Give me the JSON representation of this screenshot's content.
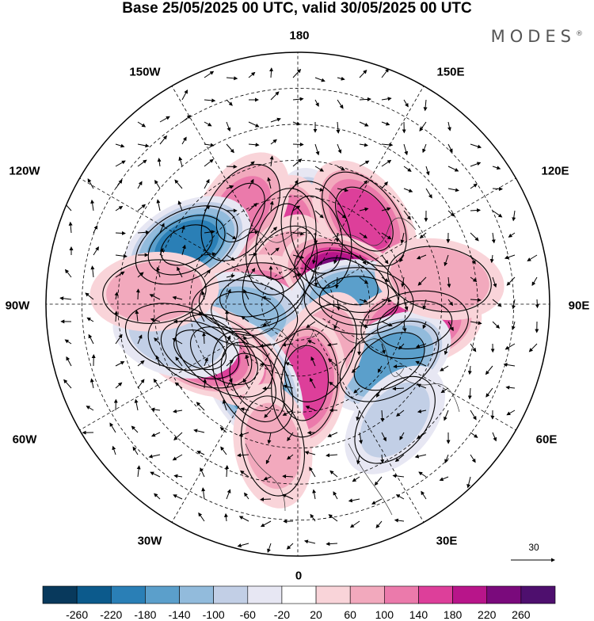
{
  "title": "Base 25/05/2025 00 UTC, valid 30/05/2025 00 UTC",
  "brand": "MODES",
  "brand_mark": "®",
  "longitude_labels": {
    "top": "180",
    "top_left": "150W",
    "top_right": "150E",
    "upper_left": "120W",
    "upper_right": "120E",
    "left": "90W",
    "right": "90E",
    "lower_left": "60W",
    "lower_right": "60E",
    "bottom_left": "30W",
    "bottom_right": "30E",
    "bottom": "0"
  },
  "reference_vector": {
    "label": "30"
  },
  "colorbar": {
    "ticks": [
      "-260",
      "-220",
      "-180",
      "-140",
      "-100",
      "-60",
      "-20",
      "20",
      "60",
      "100",
      "140",
      "180",
      "220",
      "260"
    ],
    "colors": [
      "#08395c",
      "#0c5a8c",
      "#2a7fb6",
      "#5b9fcb",
      "#92bbdc",
      "#c2cfe6",
      "#e7e7f3",
      "#ffffff",
      "#f9d4d9",
      "#f2a9bd",
      "#eb7aab",
      "#dd3f9a",
      "#b8158a",
      "#7a0a7c",
      "#4e0f6e"
    ]
  },
  "anomaly_centers": [
    {
      "lon": -165,
      "colat": 20,
      "value": -170
    },
    {
      "lon": 165,
      "colat": 18,
      "value": 160
    },
    {
      "lon": 148,
      "colat": 30,
      "value": 110
    },
    {
      "lon": -142,
      "colat": 30,
      "value": 140
    },
    {
      "lon": 118,
      "colat": 35,
      "value": -190
    },
    {
      "lon": 150,
      "colat": 10,
      "value": 70
    },
    {
      "lon": 100,
      "colat": 13,
      "value": 110
    },
    {
      "lon": 80,
      "colat": 15,
      "value": -120
    },
    {
      "lon": -115,
      "colat": 15,
      "value": 240
    },
    {
      "lon": -93,
      "colat": 17,
      "value": -170
    },
    {
      "lon": -80,
      "colat": 33,
      "value": 150
    },
    {
      "lon": -58,
      "colat": 30,
      "value": -160
    },
    {
      "lon": -25,
      "colat": 15,
      "value": 80
    },
    {
      "lon": -5,
      "colat": 22,
      "value": 150
    },
    {
      "lon": 30,
      "colat": 25,
      "value": -220
    },
    {
      "lon": 55,
      "colat": 25,
      "value": 150
    },
    {
      "lon": 65,
      "colat": 30,
      "value": 190
    },
    {
      "lon": 75,
      "colat": 35,
      "value": -80
    },
    {
      "lon": -100,
      "colat": 40,
      "value": 90
    },
    {
      "lon": -40,
      "colat": 42,
      "value": -60
    },
    {
      "lon": 10,
      "colat": 40,
      "value": 60
    },
    {
      "lon": 95,
      "colat": 40,
      "value": 80
    }
  ]
}
